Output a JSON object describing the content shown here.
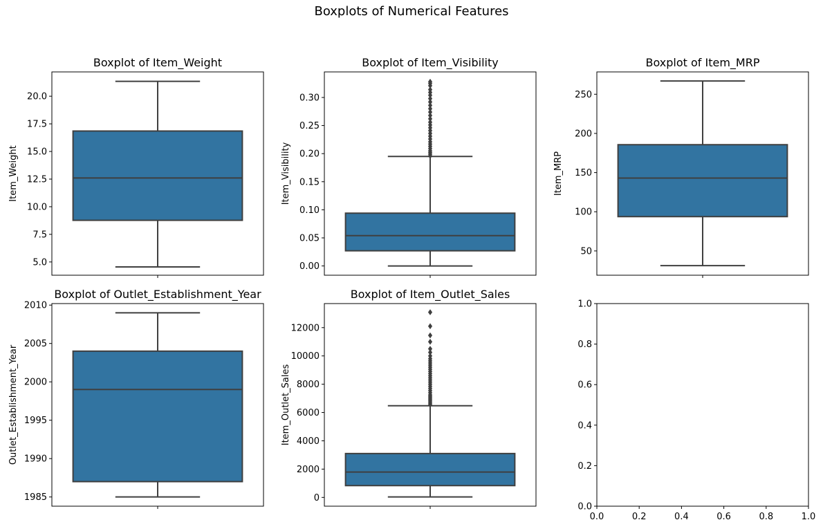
{
  "figure": {
    "suptitle": "Boxplots of Numerical Features"
  },
  "colors": {
    "box_fill": "#3274a1",
    "line": "#3f3f3f",
    "axis": "#000000"
  },
  "chart_data": [
    {
      "type": "box",
      "title": "Boxplot of Item_Weight",
      "ylabel": "Item_Weight",
      "xlabel": "",
      "ylim": [
        3.8,
        22.2
      ],
      "yticks": [
        5.0,
        7.5,
        10.0,
        12.5,
        15.0,
        17.5,
        20.0
      ],
      "ytick_labels": [
        "5.0",
        "7.5",
        "10.0",
        "12.5",
        "15.0",
        "17.5",
        "20.0"
      ],
      "box": {
        "whisker_low": 4.55,
        "q1": 8.77,
        "median": 12.6,
        "q3": 16.85,
        "whisker_high": 21.35
      },
      "outliers": []
    },
    {
      "type": "box",
      "title": "Boxplot of Item_Visibility",
      "ylabel": "Item_Visibility",
      "xlabel": "",
      "ylim": [
        -0.0165,
        0.3455
      ],
      "yticks": [
        0.0,
        0.05,
        0.1,
        0.15,
        0.2,
        0.25,
        0.3
      ],
      "ytick_labels": [
        "0.00",
        "0.05",
        "0.10",
        "0.15",
        "0.20",
        "0.25",
        "0.30"
      ],
      "box": {
        "whisker_low": 0.0,
        "q1": 0.027,
        "median": 0.054,
        "q3": 0.094,
        "whisker_high": 0.195
      },
      "outliers": [
        0.196,
        0.199,
        0.202,
        0.205,
        0.209,
        0.213,
        0.217,
        0.221,
        0.226,
        0.231,
        0.236,
        0.241,
        0.246,
        0.251,
        0.256,
        0.262,
        0.268,
        0.274,
        0.28,
        0.286,
        0.292,
        0.298,
        0.304,
        0.309,
        0.314,
        0.321,
        0.325,
        0.328
      ]
    },
    {
      "type": "box",
      "title": "Boxplot of Item_MRP",
      "ylabel": "Item_MRP",
      "xlabel": "",
      "ylim": [
        19.0,
        278.5
      ],
      "yticks": [
        50,
        100,
        150,
        200,
        250
      ],
      "ytick_labels": [
        "50",
        "100",
        "150",
        "200",
        "250"
      ],
      "box": {
        "whisker_low": 31.3,
        "q1": 93.8,
        "median": 143.0,
        "q3": 185.6,
        "whisker_high": 266.9
      },
      "outliers": []
    },
    {
      "type": "box",
      "title": "Boxplot of Outlet_Establishment_Year",
      "ylabel": "Outlet_Establishment_Year",
      "xlabel": "",
      "ylim": [
        1983.8,
        2010.2
      ],
      "yticks": [
        1985,
        1990,
        1995,
        2000,
        2005,
        2010
      ],
      "ytick_labels": [
        "1985",
        "1990",
        "1995",
        "2000",
        "2005",
        "2010"
      ],
      "box": {
        "whisker_low": 1985,
        "q1": 1987,
        "median": 1999,
        "q3": 2004,
        "whisker_high": 2009
      },
      "outliers": []
    },
    {
      "type": "box",
      "title": "Boxplot of Item_Outlet_Sales",
      "ylabel": "Item_Outlet_Sales",
      "xlabel": "",
      "ylim": [
        -620,
        13700
      ],
      "yticks": [
        0,
        2000,
        4000,
        6000,
        8000,
        10000,
        12000
      ],
      "ytick_labels": [
        "0",
        "2000",
        "4000",
        "6000",
        "8000",
        "10000",
        "12000"
      ],
      "box": {
        "whisker_low": 33,
        "q1": 834,
        "median": 1794,
        "q3": 3101,
        "whisker_high": 6478
      },
      "outliers": [
        6550,
        6650,
        6750,
        6850,
        6950,
        7050,
        7150,
        7250,
        7400,
        7550,
        7700,
        7850,
        8000,
        8150,
        8300,
        8450,
        8600,
        8750,
        8900,
        9050,
        9200,
        9350,
        9500,
        9650,
        9800,
        10000,
        10250,
        10500,
        11000,
        11450,
        12100,
        13087
      ]
    },
    {
      "type": "empty",
      "title": "",
      "xlim": [
        0.0,
        1.0
      ],
      "ylim": [
        0.0,
        1.0
      ],
      "xticks": [
        0.0,
        0.2,
        0.4,
        0.6,
        0.8,
        1.0
      ],
      "xtick_labels": [
        "0.0",
        "0.2",
        "0.4",
        "0.6",
        "0.8",
        "1.0"
      ],
      "yticks": [
        0.0,
        0.2,
        0.4,
        0.6,
        0.8,
        1.0
      ],
      "ytick_labels": [
        "0.0",
        "0.2",
        "0.4",
        "0.6",
        "0.8",
        "1.0"
      ]
    }
  ]
}
